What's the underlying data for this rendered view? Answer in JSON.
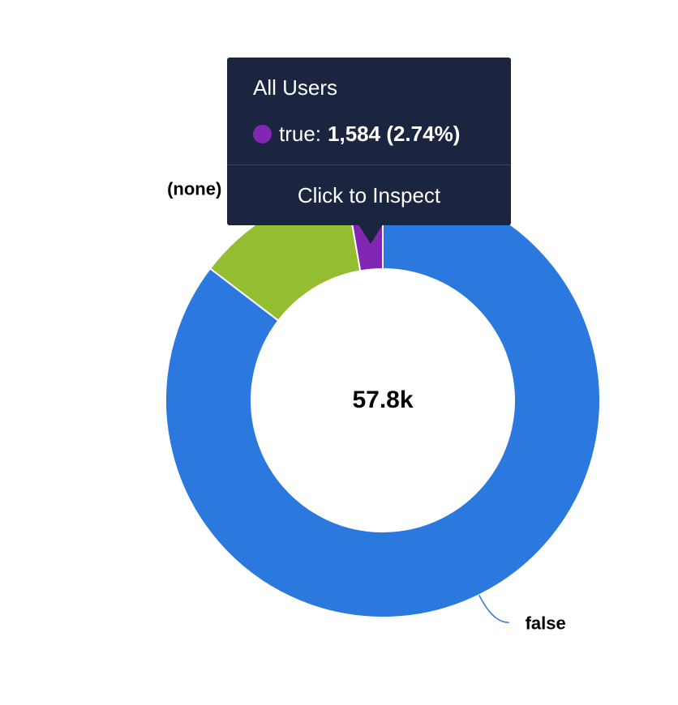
{
  "chart_data": {
    "type": "pie",
    "variant": "donut",
    "center_label": "57.8k",
    "categories": [
      "false",
      "(none)",
      "true"
    ],
    "values": [
      49353,
      6863,
      1584
    ],
    "colors": [
      "#2b78de",
      "#94bd32",
      "#8227b4"
    ],
    "slice_labels": [
      "false",
      "(none)",
      ""
    ]
  },
  "tooltip": {
    "title": "All Users",
    "series_label": "true:",
    "value_text": "1,584 (2.74%)",
    "dot_color": "#8227b4",
    "action_label": "Click to Inspect"
  }
}
